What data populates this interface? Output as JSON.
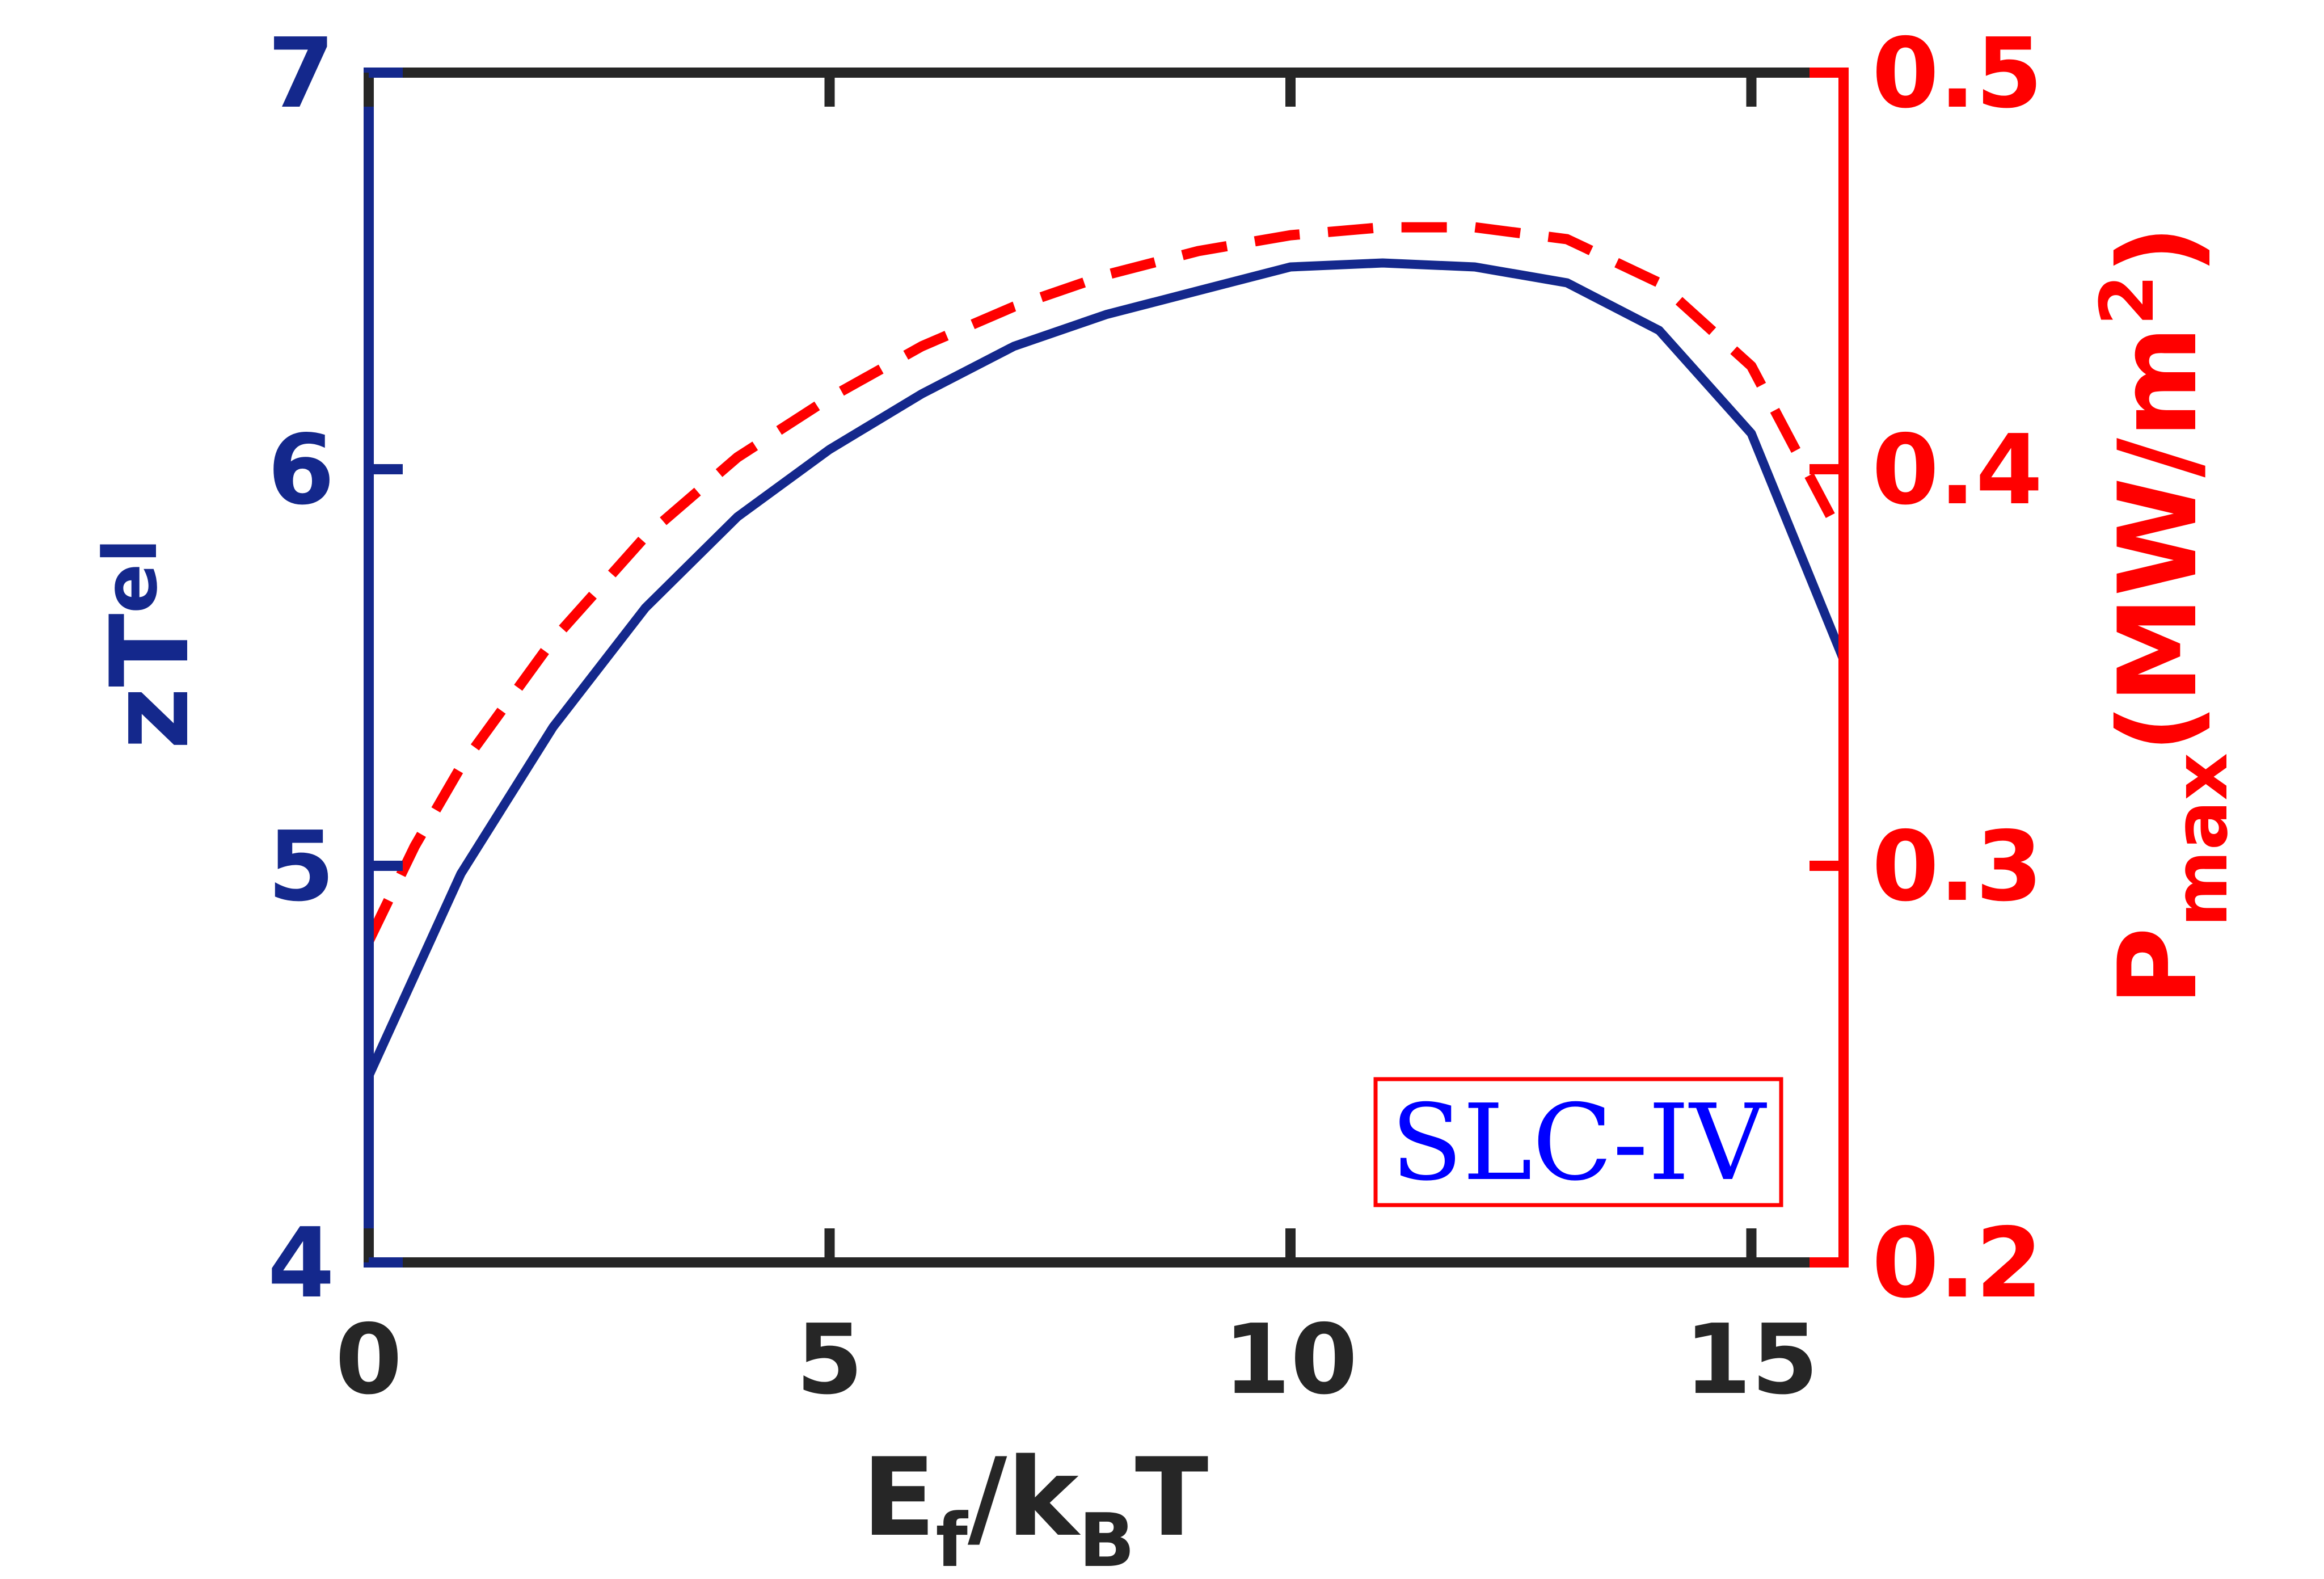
{
  "chart_data": {
    "type": "line",
    "xlabel": {
      "main": "E",
      "sub1": "f",
      "mid": "/k",
      "sub2": "B",
      "end": "T"
    },
    "ylabel_left": {
      "main": "zT",
      "sub": "el"
    },
    "ylabel_right": {
      "main": "P",
      "sub": "max",
      "unit": "(MW/m",
      "sup": "2",
      "close": ")"
    },
    "xlim": [
      0,
      16
    ],
    "ylim_left": [
      4,
      7
    ],
    "ylim_right": [
      0.2,
      0.5
    ],
    "x_ticks": [
      0,
      5,
      10,
      15
    ],
    "x_tick_labels": [
      "0",
      "5",
      "10",
      "15"
    ],
    "y_left_ticks": [
      4,
      5,
      6,
      7
    ],
    "y_left_tick_labels": [
      "4",
      "5",
      "6",
      "7"
    ],
    "y_right_ticks": [
      0.2,
      0.3,
      0.4,
      0.5
    ],
    "y_right_tick_labels": [
      "0.2",
      "0.3",
      "0.4",
      "0.5"
    ],
    "annotation": "SLC-IV",
    "grid": false,
    "colors": {
      "left_axis": "#14288c",
      "right_axis": "#ff0000",
      "frame": "#262626",
      "annotation_text": "#0000ff",
      "annotation_border": "#ff0000"
    },
    "series": [
      {
        "axis": "left",
        "style": "solid",
        "color": "#14288c",
        "x": [
          0,
          1,
          2,
          3,
          4,
          5,
          6,
          7,
          8,
          9,
          10,
          11,
          12,
          13,
          14,
          15,
          16
        ],
        "y": [
          4.47,
          4.98,
          5.35,
          5.65,
          5.88,
          6.05,
          6.19,
          6.31,
          6.39,
          6.45,
          6.51,
          6.52,
          6.51,
          6.47,
          6.35,
          6.09,
          5.52
        ]
      },
      {
        "axis": "right",
        "style": "dashed",
        "color": "#ff0000",
        "x": [
          0,
          0.5,
          1,
          2,
          3,
          4,
          5,
          6,
          7,
          8,
          9,
          10,
          11,
          12,
          13,
          14,
          15,
          16
        ],
        "y": [
          0.281,
          0.305,
          0.325,
          0.357,
          0.383,
          0.403,
          0.418,
          0.431,
          0.441,
          0.449,
          0.455,
          0.459,
          0.461,
          0.461,
          0.458,
          0.447,
          0.426,
          0.382
        ]
      }
    ]
  }
}
